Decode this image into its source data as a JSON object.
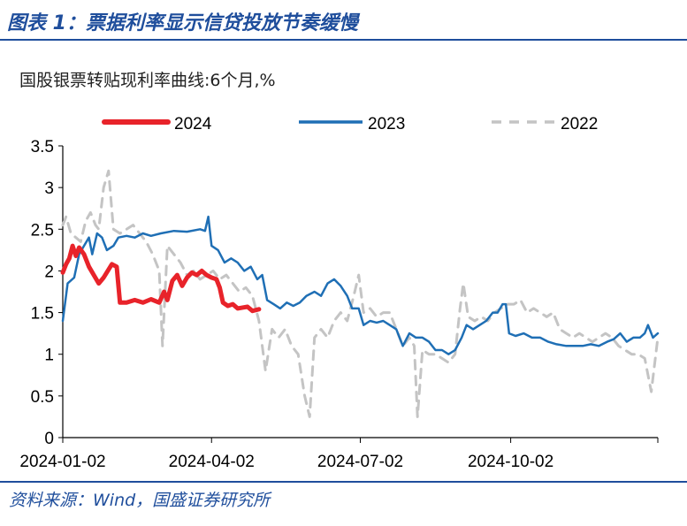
{
  "header": {
    "title": "图表 1：票据利率显示信贷投放节奏缓慢"
  },
  "footer": {
    "source": "资料来源：Wind，国盛证券研究所"
  },
  "colors": {
    "brand": "#1f4e9c",
    "s2024": "#e8232a",
    "s2023": "#1f6fb5",
    "s2022": "#c4c4c4"
  },
  "chart_data": {
    "type": "line",
    "title": "国股银票转贴现利率曲线:6个月,%",
    "xlabel": "",
    "ylabel": "",
    "ylim": [
      0,
      3.5
    ],
    "yticks": [
      "0",
      "0.5",
      "1",
      "1.5",
      "2",
      "2.5",
      "3",
      "3.5"
    ],
    "yticks_values": [
      0,
      0.5,
      1,
      1.5,
      2,
      2.5,
      3,
      3.5
    ],
    "xticks": [
      "2024-01-02",
      "2024-04-02",
      "2024-07-02",
      "2024-10-02"
    ],
    "xticks_values": [
      "2024-01-02",
      "2024-04-02",
      "2024-07-02",
      "2024-10-02"
    ],
    "xlim": [
      "2024-01-02",
      "2024-12-31"
    ],
    "grid": false,
    "legend_position": "top",
    "series": [
      {
        "name": "2024",
        "color": "#e8232a",
        "style": "solid-thick",
        "points": [
          [
            "2024-01-02",
            1.98
          ],
          [
            "2024-01-04",
            2.08
          ],
          [
            "2024-01-06",
            2.15
          ],
          [
            "2024-01-08",
            2.3
          ],
          [
            "2024-01-10",
            2.18
          ],
          [
            "2024-01-12",
            2.28
          ],
          [
            "2024-01-15",
            2.2
          ],
          [
            "2024-01-18",
            2.05
          ],
          [
            "2024-01-21",
            1.95
          ],
          [
            "2024-01-24",
            1.85
          ],
          [
            "2024-01-27",
            1.92
          ],
          [
            "2024-02-01",
            2.08
          ],
          [
            "2024-02-04",
            2.05
          ],
          [
            "2024-02-06",
            1.62
          ],
          [
            "2024-02-10",
            1.62
          ],
          [
            "2024-02-15",
            1.65
          ],
          [
            "2024-02-20",
            1.62
          ],
          [
            "2024-02-25",
            1.66
          ],
          [
            "2024-03-01",
            1.62
          ],
          [
            "2024-03-04",
            1.75
          ],
          [
            "2024-03-06",
            1.65
          ],
          [
            "2024-03-09",
            1.88
          ],
          [
            "2024-03-12",
            1.95
          ],
          [
            "2024-03-15",
            1.82
          ],
          [
            "2024-03-18",
            1.92
          ],
          [
            "2024-03-21",
            1.98
          ],
          [
            "2024-03-24",
            1.95
          ],
          [
            "2024-03-27",
            2.0
          ],
          [
            "2024-03-30",
            1.95
          ],
          [
            "2024-04-02",
            1.92
          ],
          [
            "2024-04-05",
            1.9
          ],
          [
            "2024-04-07",
            1.8
          ],
          [
            "2024-04-09",
            1.62
          ],
          [
            "2024-04-12",
            1.58
          ],
          [
            "2024-04-15",
            1.6
          ],
          [
            "2024-04-18",
            1.55
          ],
          [
            "2024-04-21",
            1.56
          ],
          [
            "2024-04-24",
            1.57
          ],
          [
            "2024-04-27",
            1.52
          ],
          [
            "2024-05-01",
            1.54
          ]
        ]
      },
      {
        "name": "2023",
        "color": "#1f6fb5",
        "style": "solid",
        "points": [
          [
            "2024-01-02",
            1.4
          ],
          [
            "2024-01-05",
            1.85
          ],
          [
            "2024-01-09",
            1.92
          ],
          [
            "2024-01-12",
            2.2
          ],
          [
            "2024-01-15",
            2.3
          ],
          [
            "2024-01-18",
            2.4
          ],
          [
            "2024-01-20",
            2.2
          ],
          [
            "2024-01-23",
            2.45
          ],
          [
            "2024-01-26",
            2.4
          ],
          [
            "2024-01-29",
            2.25
          ],
          [
            "2024-02-02",
            2.3
          ],
          [
            "2024-02-05",
            2.4
          ],
          [
            "2024-02-10",
            2.42
          ],
          [
            "2024-02-15",
            2.4
          ],
          [
            "2024-02-20",
            2.45
          ],
          [
            "2024-02-25",
            2.42
          ],
          [
            "2024-03-02",
            2.45
          ],
          [
            "2024-03-10",
            2.48
          ],
          [
            "2024-03-18",
            2.47
          ],
          [
            "2024-03-26",
            2.5
          ],
          [
            "2024-03-29",
            2.48
          ],
          [
            "2024-03-31",
            2.65
          ],
          [
            "2024-04-02",
            2.3
          ],
          [
            "2024-04-06",
            2.25
          ],
          [
            "2024-04-10",
            2.1
          ],
          [
            "2024-04-14",
            2.15
          ],
          [
            "2024-04-18",
            2.1
          ],
          [
            "2024-04-22",
            2.0
          ],
          [
            "2024-04-26",
            2.05
          ],
          [
            "2024-04-30",
            1.9
          ],
          [
            "2024-05-03",
            1.95
          ],
          [
            "2024-05-06",
            1.65
          ],
          [
            "2024-05-10",
            1.6
          ],
          [
            "2024-05-14",
            1.55
          ],
          [
            "2024-05-18",
            1.62
          ],
          [
            "2024-05-22",
            1.58
          ],
          [
            "2024-05-26",
            1.62
          ],
          [
            "2024-05-30",
            1.7
          ],
          [
            "2024-06-04",
            1.75
          ],
          [
            "2024-06-08",
            1.7
          ],
          [
            "2024-06-12",
            1.85
          ],
          [
            "2024-06-16",
            1.9
          ],
          [
            "2024-06-20",
            1.82
          ],
          [
            "2024-06-24",
            1.7
          ],
          [
            "2024-06-27",
            1.55
          ],
          [
            "2024-07-01",
            1.55
          ],
          [
            "2024-07-04",
            1.35
          ],
          [
            "2024-07-08",
            1.4
          ],
          [
            "2024-07-12",
            1.38
          ],
          [
            "2024-07-16",
            1.4
          ],
          [
            "2024-07-20",
            1.35
          ],
          [
            "2024-07-24",
            1.3
          ],
          [
            "2024-07-28",
            1.1
          ],
          [
            "2024-08-01",
            1.25
          ],
          [
            "2024-08-05",
            1.2
          ],
          [
            "2024-08-09",
            1.2
          ],
          [
            "2024-08-13",
            1.15
          ],
          [
            "2024-08-17",
            1.05
          ],
          [
            "2024-08-21",
            1.05
          ],
          [
            "2024-08-25",
            1.0
          ],
          [
            "2024-08-29",
            1.05
          ],
          [
            "2024-09-02",
            1.2
          ],
          [
            "2024-09-05",
            1.35
          ],
          [
            "2024-09-09",
            1.3
          ],
          [
            "2024-09-13",
            1.35
          ],
          [
            "2024-09-17",
            1.4
          ],
          [
            "2024-09-21",
            1.5
          ],
          [
            "2024-09-24",
            1.5
          ],
          [
            "2024-09-27",
            1.6
          ],
          [
            "2024-09-29",
            1.6
          ],
          [
            "2024-10-01",
            1.25
          ],
          [
            "2024-10-05",
            1.22
          ],
          [
            "2024-10-10",
            1.25
          ],
          [
            "2024-10-15",
            1.2
          ],
          [
            "2024-10-20",
            1.2
          ],
          [
            "2024-10-25",
            1.15
          ],
          [
            "2024-10-30",
            1.12
          ],
          [
            "2024-11-05",
            1.1
          ],
          [
            "2024-11-10",
            1.1
          ],
          [
            "2024-11-15",
            1.1
          ],
          [
            "2024-11-20",
            1.12
          ],
          [
            "2024-11-25",
            1.1
          ],
          [
            "2024-11-30",
            1.15
          ],
          [
            "2024-12-04",
            1.18
          ],
          [
            "2024-12-08",
            1.25
          ],
          [
            "2024-12-12",
            1.15
          ],
          [
            "2024-12-16",
            1.2
          ],
          [
            "2024-12-20",
            1.2
          ],
          [
            "2024-12-23",
            1.25
          ],
          [
            "2024-12-25",
            1.35
          ],
          [
            "2024-12-28",
            1.2
          ],
          [
            "2024-12-31",
            1.25
          ]
        ]
      },
      {
        "name": "2022",
        "color": "#c4c4c4",
        "style": "dashed",
        "points": [
          [
            "2024-01-02",
            2.55
          ],
          [
            "2024-01-04",
            2.65
          ],
          [
            "2024-01-07",
            2.45
          ],
          [
            "2024-01-10",
            2.4
          ],
          [
            "2024-01-13",
            2.35
          ],
          [
            "2024-01-16",
            2.6
          ],
          [
            "2024-01-19",
            2.7
          ],
          [
            "2024-01-22",
            2.55
          ],
          [
            "2024-01-24",
            2.5
          ],
          [
            "2024-01-27",
            3.0
          ],
          [
            "2024-01-30",
            3.2
          ],
          [
            "2024-02-02",
            2.5
          ],
          [
            "2024-02-06",
            2.45
          ],
          [
            "2024-02-10",
            2.5
          ],
          [
            "2024-02-14",
            2.55
          ],
          [
            "2024-02-18",
            2.45
          ],
          [
            "2024-02-22",
            2.35
          ],
          [
            "2024-02-26",
            2.2
          ],
          [
            "2024-03-01",
            2.0
          ],
          [
            "2024-03-03",
            1.1
          ],
          [
            "2024-03-06",
            2.3
          ],
          [
            "2024-03-10",
            2.2
          ],
          [
            "2024-03-14",
            2.1
          ],
          [
            "2024-03-18",
            1.95
          ],
          [
            "2024-03-22",
            2.0
          ],
          [
            "2024-03-26",
            1.9
          ],
          [
            "2024-03-30",
            1.95
          ],
          [
            "2024-04-03",
            2.0
          ],
          [
            "2024-04-07",
            1.9
          ],
          [
            "2024-04-11",
            1.95
          ],
          [
            "2024-04-15",
            1.85
          ],
          [
            "2024-04-19",
            1.75
          ],
          [
            "2024-04-23",
            1.8
          ],
          [
            "2024-04-27",
            1.7
          ],
          [
            "2024-05-01",
            1.4
          ],
          [
            "2024-05-05",
            0.8
          ],
          [
            "2024-05-09",
            1.3
          ],
          [
            "2024-05-13",
            1.2
          ],
          [
            "2024-05-17",
            1.3
          ],
          [
            "2024-05-21",
            1.1
          ],
          [
            "2024-05-25",
            1.0
          ],
          [
            "2024-05-29",
            0.5
          ],
          [
            "2024-06-01",
            0.25
          ],
          [
            "2024-06-04",
            1.2
          ],
          [
            "2024-06-08",
            1.3
          ],
          [
            "2024-06-12",
            1.2
          ],
          [
            "2024-06-16",
            1.4
          ],
          [
            "2024-06-20",
            1.5
          ],
          [
            "2024-06-24",
            1.4
          ],
          [
            "2024-06-28",
            1.7
          ],
          [
            "2024-07-01",
            1.95
          ],
          [
            "2024-07-04",
            1.5
          ],
          [
            "2024-07-08",
            1.55
          ],
          [
            "2024-07-12",
            1.45
          ],
          [
            "2024-07-16",
            1.5
          ],
          [
            "2024-07-20",
            1.5
          ],
          [
            "2024-07-24",
            1.3
          ],
          [
            "2024-07-28",
            1.1
          ],
          [
            "2024-08-01",
            1.2
          ],
          [
            "2024-08-04",
            1.1
          ],
          [
            "2024-08-06",
            0.25
          ],
          [
            "2024-08-09",
            1.05
          ],
          [
            "2024-08-13",
            1.0
          ],
          [
            "2024-08-17",
            1.0
          ],
          [
            "2024-08-21",
            0.95
          ],
          [
            "2024-08-25",
            0.9
          ],
          [
            "2024-08-29",
            1.0
          ],
          [
            "2024-09-01",
            1.55
          ],
          [
            "2024-09-03",
            1.85
          ],
          [
            "2024-09-06",
            1.45
          ],
          [
            "2024-09-10",
            1.4
          ],
          [
            "2024-09-14",
            1.45
          ],
          [
            "2024-09-18",
            1.4
          ],
          [
            "2024-09-22",
            1.5
          ],
          [
            "2024-09-26",
            1.55
          ],
          [
            "2024-09-30",
            1.6
          ],
          [
            "2024-10-04",
            1.6
          ],
          [
            "2024-10-08",
            1.65
          ],
          [
            "2024-10-12",
            1.5
          ],
          [
            "2024-10-16",
            1.55
          ],
          [
            "2024-10-20",
            1.5
          ],
          [
            "2024-10-24",
            1.45
          ],
          [
            "2024-10-28",
            1.5
          ],
          [
            "2024-11-01",
            1.3
          ],
          [
            "2024-11-05",
            1.25
          ],
          [
            "2024-11-09",
            1.2
          ],
          [
            "2024-11-13",
            1.25
          ],
          [
            "2024-11-17",
            1.2
          ],
          [
            "2024-11-21",
            1.15
          ],
          [
            "2024-11-25",
            1.2
          ],
          [
            "2024-11-29",
            1.25
          ],
          [
            "2024-12-03",
            1.2
          ],
          [
            "2024-12-07",
            1.1
          ],
          [
            "2024-12-11",
            1.05
          ],
          [
            "2024-12-15",
            1.0
          ],
          [
            "2024-12-19",
            1.0
          ],
          [
            "2024-12-23",
            0.95
          ],
          [
            "2024-12-27",
            0.55
          ],
          [
            "2024-12-31",
            1.2
          ]
        ]
      }
    ]
  }
}
